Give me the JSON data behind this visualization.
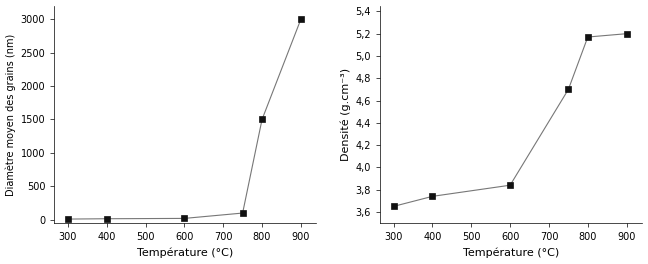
{
  "left": {
    "x": [
      300,
      400,
      600,
      750,
      800,
      900
    ],
    "y": [
      10,
      15,
      20,
      100,
      1500,
      3000
    ],
    "xlabel": "Température (°C)",
    "ylabel": "Diamètre moyen des grains (nm)",
    "xlim": [
      265,
      940
    ],
    "ylim": [
      -50,
      3200
    ],
    "xticks": [
      300,
      400,
      500,
      600,
      700,
      800,
      900
    ],
    "yticks": [
      0,
      500,
      1000,
      1500,
      2000,
      2500,
      3000
    ]
  },
  "right": {
    "x": [
      300,
      400,
      600,
      750,
      800,
      900
    ],
    "y": [
      3.65,
      3.74,
      3.84,
      4.7,
      5.17,
      5.2
    ],
    "xlabel": "Température (°C)",
    "ylabel": "Densité (g.cm⁻³)",
    "xlim": [
      265,
      940
    ],
    "ylim": [
      3.5,
      5.45
    ],
    "xticks": [
      300,
      400,
      500,
      600,
      700,
      800,
      900
    ],
    "yticks": [
      3.6,
      3.8,
      4.0,
      4.2,
      4.4,
      4.6,
      4.8,
      5.0,
      5.2,
      5.4
    ],
    "ytick_labels": [
      "3,6",
      "3,8",
      "4,0",
      "4,2",
      "4,4",
      "4,6",
      "4,8",
      "5,0",
      "5,2",
      "5,4"
    ]
  },
  "line_color": "#777777",
  "marker": "s",
  "marker_color": "#111111",
  "marker_size": 4,
  "linewidth": 0.8,
  "tick_labelsize": 7,
  "axis_labelsize": 8,
  "ylabel_labelsize": 7,
  "fig_width": 6.48,
  "fig_height": 2.64,
  "dpi": 100
}
